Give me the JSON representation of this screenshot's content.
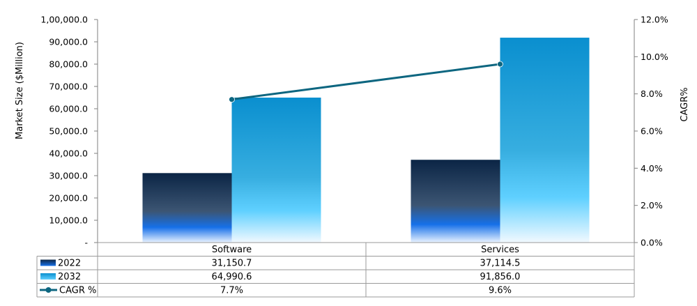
{
  "chart_data": {
    "type": "bar",
    "categories": [
      "Software",
      "Services"
    ],
    "series": [
      {
        "name": "2022",
        "values": [
          31150.7,
          37114.5
        ],
        "display": [
          "31,150.7",
          "37,114.5"
        ],
        "color_top": "#0b2545",
        "color_bottom": "#1670e8"
      },
      {
        "name": "2032",
        "values": [
          64990.6,
          91856.0
        ],
        "display": [
          "64,990.6",
          "91,856.0"
        ],
        "color_top": "#0a8fcf",
        "color_bottom": "#f0f8ff"
      }
    ],
    "line_series": {
      "name": "CAGR %",
      "values": [
        7.7,
        9.6
      ],
      "display": [
        "7.7%",
        "9.6%"
      ],
      "color": "#0d6680",
      "axis": "right"
    },
    "ylabel": "Market Size ($Million)",
    "y2label": "CAGR%",
    "ylim": [
      0,
      100000
    ],
    "y2lim": [
      0,
      12
    ],
    "y_ticks": [
      "-",
      "10,000.0",
      "20,000.0",
      "30,000.0",
      "40,000.0",
      "50,000.0",
      "60,000.0",
      "70,000.0",
      "80,000.0",
      "90,000.0",
      "1,00,000.0"
    ],
    "y2_ticks": [
      "0.0%",
      "2.0%",
      "4.0%",
      "6.0%",
      "8.0%",
      "10.0%",
      "12.0%"
    ],
    "data_table": true
  }
}
